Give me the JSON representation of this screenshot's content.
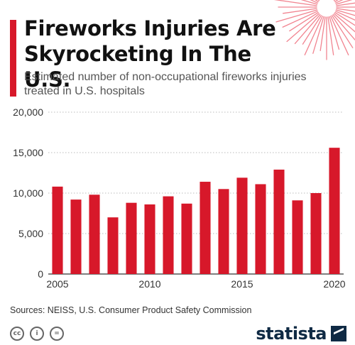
{
  "header": {
    "title": "Fireworks Injuries Are Skyrocketing In The U.S.",
    "subtitle": "Estimated number of non-occupational fireworks injuries treated in U.S. hospitals"
  },
  "footer": {
    "source": "Sources: NEISS, U.S. Consumer Product Safety Commission",
    "brand": "statista",
    "license_icons": [
      "cc-icon",
      "attribution-icon",
      "no-derivatives-icon"
    ]
  },
  "colors": {
    "accent": "#d7182a",
    "bar": "#d7182a",
    "firework": "#ef6f7d",
    "brand": "#0f2a44"
  },
  "chart_data": {
    "type": "bar",
    "title": "Fireworks Injuries Are Skyrocketing In The U.S.",
    "subtitle": "Estimated number of non-occupational fireworks injuries treated in U.S. hospitals",
    "xlabel": "",
    "ylabel": "",
    "categories": [
      2005,
      2006,
      2007,
      2008,
      2009,
      2010,
      2011,
      2012,
      2013,
      2014,
      2015,
      2016,
      2017,
      2018,
      2019,
      2020
    ],
    "values": [
      10800,
      9200,
      9800,
      7000,
      8800,
      8600,
      9600,
      8700,
      11400,
      10500,
      11900,
      11100,
      12900,
      9100,
      10000,
      15600
    ],
    "ylim": [
      0,
      20000
    ],
    "yticks": [
      0,
      5000,
      10000,
      15000,
      20000
    ],
    "ytick_labels": [
      "0",
      "5,000",
      "10,000",
      "15,000",
      "20,000"
    ],
    "xtick_labels": [
      "2005",
      "2010",
      "2015",
      "2020"
    ],
    "grid": "horizontal dotted",
    "legend": "none"
  }
}
